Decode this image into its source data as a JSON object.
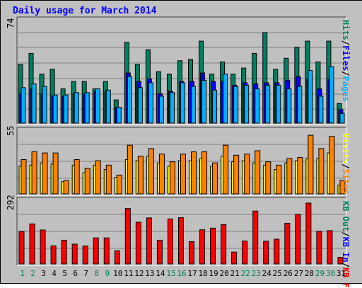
{
  "chart_data": [
    {
      "type": "bar",
      "title": "Daily usage for March 2014",
      "ymax_label": "74",
      "legend": [
        {
          "name": "Pages",
          "color": "#00b0ff"
        },
        {
          "name": "Files",
          "color": "#0000ff"
        },
        {
          "name": "Hits",
          "color": "#008060"
        }
      ],
      "categories": [
        "1",
        "2",
        "3",
        "4",
        "5",
        "6",
        "7",
        "8",
        "9",
        "10",
        "11",
        "12",
        "13",
        "14",
        "15",
        "16",
        "17",
        "18",
        "19",
        "20",
        "21",
        "22",
        "23",
        "24",
        "25",
        "26",
        "27",
        "28",
        "29",
        "30",
        "31"
      ],
      "weekend_days": [
        "1",
        "2",
        "8",
        "9",
        "15",
        "16",
        "22",
        "23",
        "29",
        "30"
      ],
      "series": [
        {
          "name": "Hits",
          "values": [
            48,
            57,
            40,
            44,
            28,
            34,
            34,
            28,
            34,
            19,
            66,
            48,
            60,
            42,
            40,
            51,
            52,
            67,
            40,
            50,
            40,
            45,
            57,
            74,
            44,
            53,
            62,
            67,
            50,
            67,
            16
          ]
        },
        {
          "name": "Files",
          "values": [
            24,
            28,
            24,
            22,
            22,
            24,
            24,
            26,
            26,
            13,
            41,
            34,
            36,
            24,
            26,
            34,
            34,
            41,
            34,
            34,
            31,
            33,
            32,
            33,
            33,
            35,
            38,
            36,
            28,
            36,
            11
          ]
        },
        {
          "name": "Pages",
          "values": [
            29,
            32,
            30,
            23,
            23,
            25,
            25,
            28,
            27,
            13,
            38,
            29,
            33,
            22,
            25,
            33,
            30,
            35,
            27,
            40,
            30,
            31,
            28,
            31,
            31,
            28,
            30,
            43,
            22,
            46,
            8
          ]
        }
      ]
    },
    {
      "type": "bar",
      "ymax_label": "55",
      "legend": [
        {
          "name": "Sites",
          "color": "#ff8000"
        },
        {
          "name": "Visits",
          "color": "#ffff00"
        }
      ],
      "categories": [
        "1",
        "2",
        "3",
        "4",
        "5",
        "6",
        "7",
        "8",
        "9",
        "10",
        "11",
        "12",
        "13",
        "14",
        "15",
        "16",
        "17",
        "18",
        "19",
        "20",
        "21",
        "22",
        "23",
        "24",
        "25",
        "26",
        "27",
        "28",
        "29",
        "30",
        "31"
      ],
      "series": [
        {
          "name": "Sites",
          "values": [
            31,
            38,
            37,
            37,
            12,
            31,
            23,
            30,
            26,
            17,
            44,
            34,
            41,
            36,
            29,
            36,
            38,
            38,
            28,
            44,
            35,
            36,
            39,
            29,
            26,
            32,
            33,
            53,
            41,
            52,
            12
          ]
        },
        {
          "name": "Visits",
          "values": [
            25,
            26,
            28,
            27,
            11,
            26,
            19,
            26,
            22,
            15,
            31,
            30,
            34,
            28,
            25,
            30,
            30,
            32,
            25,
            34,
            29,
            30,
            28,
            26,
            22,
            28,
            30,
            32,
            32,
            37,
            8
          ]
        }
      ]
    },
    {
      "type": "bar",
      "ymax_label": "292",
      "legend": [
        {
          "name": "KB F",
          "color": "#ff0000"
        },
        {
          "name": "KB In",
          "color": "#0000ff"
        },
        {
          "name": "KB Out",
          "color": "#008060"
        }
      ],
      "categories": [
        "1",
        "2",
        "3",
        "4",
        "5",
        "6",
        "7",
        "8",
        "9",
        "10",
        "11",
        "12",
        "13",
        "14",
        "15",
        "16",
        "17",
        "18",
        "19",
        "20",
        "21",
        "22",
        "23",
        "24",
        "25",
        "26",
        "27",
        "28",
        "29",
        "30",
        "31"
      ],
      "series": [
        {
          "name": "KB F",
          "values": [
            156,
            192,
            163,
            87,
            114,
            95,
            86,
            125,
            125,
            63,
            266,
            200,
            221,
            114,
            216,
            222,
            107,
            164,
            172,
            189,
            57,
            110,
            254,
            109,
            119,
            195,
            238,
            292,
            157,
            160,
            32
          ]
        }
      ]
    }
  ]
}
